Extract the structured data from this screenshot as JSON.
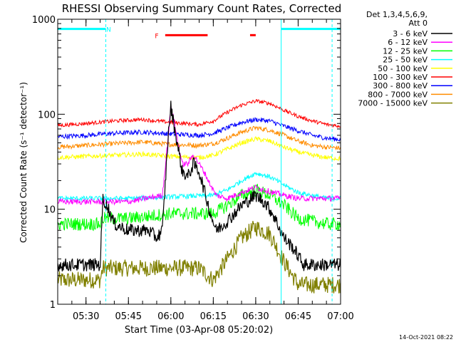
{
  "chart_data": {
    "type": "line",
    "title": "RHESSI Observing Summary Count Rates, Corrected",
    "xlabel": "Start Time (03-Apr-08 05:20:02)",
    "ylabel": "Corrected Count Rate (s⁻¹ detector⁻¹)",
    "y_scale": "log",
    "ylim": [
      1,
      1000
    ],
    "xlim": [
      "05:20",
      "07:00"
    ],
    "y_ticks": [
      {
        "value": 1,
        "label": "1"
      },
      {
        "value": 10,
        "label": "10"
      },
      {
        "value": 100,
        "label": "100"
      },
      {
        "value": 1000,
        "label": "1000"
      }
    ],
    "x_ticks": [
      {
        "time": "05:30",
        "label": "05:30"
      },
      {
        "time": "05:45",
        "label": "05:45"
      },
      {
        "time": "06:00",
        "label": "06:00"
      },
      {
        "time": "06:15",
        "label": "06:15"
      },
      {
        "time": "06:30",
        "label": "06:30"
      },
      {
        "time": "06:45",
        "label": "06:45"
      },
      {
        "time": "07:00",
        "label": "07:00"
      }
    ],
    "legend_position": "right",
    "legend_header": [
      "Det 1,3,4,5,6,9,",
      "Att 0"
    ],
    "series": [
      {
        "name": "3 - 6 keV",
        "color": "#000000",
        "x": [
          "05:20",
          "05:35",
          "05:36",
          "05:38",
          "05:40",
          "05:45",
          "05:52",
          "05:55",
          "05:57",
          "05:59",
          "06:00",
          "06:01",
          "06:02",
          "06:04",
          "06:06",
          "06:08",
          "06:10",
          "06:12",
          "06:14",
          "06:16",
          "06:20",
          "06:25",
          "06:30",
          "06:33",
          "06:36",
          "06:40",
          "06:43",
          "06:47",
          "06:55",
          "07:00"
        ],
        "y": [
          2.6,
          2.6,
          13,
          10,
          7,
          6,
          6,
          5,
          6,
          55,
          120,
          80,
          55,
          25,
          22,
          30,
          25,
          15,
          9,
          6,
          7.5,
          11,
          14,
          12,
          9,
          5,
          4,
          2.6,
          2.6,
          2.6
        ]
      },
      {
        "name": "6 - 12 keV",
        "color": "#ff00ff",
        "x": [
          "05:20",
          "05:45",
          "05:57",
          "05:59",
          "06:00",
          "06:01",
          "06:02",
          "06:04",
          "06:06",
          "06:08",
          "06:10",
          "06:12",
          "06:14",
          "06:16",
          "06:20",
          "06:25",
          "06:30",
          "06:33",
          "06:36",
          "06:40",
          "06:45",
          "06:55",
          "07:00"
        ],
        "y": [
          12,
          12,
          14,
          55,
          120,
          90,
          60,
          30,
          30,
          38,
          30,
          24,
          18,
          14,
          13,
          15,
          17,
          16,
          15,
          14,
          13,
          13,
          13
        ]
      },
      {
        "name": "12 - 25 keV",
        "color": "#00ff00",
        "x": [
          "05:20",
          "05:35",
          "05:36",
          "05:45",
          "06:00",
          "06:15",
          "06:20",
          "06:25",
          "06:30",
          "06:35",
          "06:40",
          "06:45",
          "06:55",
          "07:00"
        ],
        "y": [
          7,
          7,
          8,
          8,
          9,
          9,
          11,
          14,
          16,
          14,
          11,
          8,
          7,
          7
        ]
      },
      {
        "name": "25 - 50 keV",
        "color": "#00ffff",
        "x": [
          "05:20",
          "05:45",
          "06:00",
          "06:15",
          "06:20",
          "06:25",
          "06:30",
          "06:35",
          "06:40",
          "06:45",
          "06:55",
          "07:00"
        ],
        "y": [
          13,
          13,
          13.5,
          14,
          16,
          20,
          24,
          22,
          18,
          15,
          13,
          13
        ]
      },
      {
        "name": "50 - 100 keV",
        "color": "#ffff00",
        "x": [
          "05:20",
          "05:30",
          "05:40",
          "05:50",
          "06:00",
          "06:10",
          "06:15",
          "06:20",
          "06:25",
          "06:30",
          "06:35",
          "06:40",
          "06:45",
          "06:50",
          "06:55",
          "07:00"
        ],
        "y": [
          35,
          36,
          37,
          38,
          36,
          35,
          37,
          43,
          50,
          55,
          52,
          45,
          40,
          37,
          35,
          34
        ]
      },
      {
        "name": "100 - 300 keV",
        "color": "#ff0000",
        "x": [
          "05:20",
          "05:30",
          "05:40",
          "05:50",
          "06:00",
          "06:10",
          "06:15",
          "06:20",
          "06:25",
          "06:30",
          "06:35",
          "06:40",
          "06:45",
          "06:50",
          "06:55",
          "07:00"
        ],
        "y": [
          76,
          80,
          85,
          88,
          82,
          78,
          85,
          105,
          125,
          138,
          130,
          110,
          95,
          85,
          78,
          75
        ]
      },
      {
        "name": "300 - 800 keV",
        "color": "#0000ff",
        "x": [
          "05:20",
          "05:30",
          "05:40",
          "05:50",
          "06:00",
          "06:10",
          "06:15",
          "06:20",
          "06:25",
          "06:30",
          "06:35",
          "06:40",
          "06:45",
          "06:50",
          "06:55",
          "07:00"
        ],
        "y": [
          58,
          60,
          63,
          65,
          62,
          60,
          63,
          72,
          82,
          88,
          85,
          75,
          67,
          60,
          56,
          54
        ]
      },
      {
        "name": "800 - 7000 keV",
        "color": "#ff8c00",
        "x": [
          "05:20",
          "05:30",
          "05:40",
          "05:50",
          "06:00",
          "06:10",
          "06:15",
          "06:20",
          "06:25",
          "06:30",
          "06:35",
          "06:40",
          "06:45",
          "06:50",
          "06:55",
          "07:00"
        ],
        "y": [
          45,
          47,
          49,
          51,
          48,
          47,
          49,
          56,
          65,
          72,
          68,
          60,
          52,
          47,
          45,
          44
        ]
      },
      {
        "name": "7000 - 15000 keV",
        "color": "#808000",
        "x": [
          "05:20",
          "05:35",
          "05:36",
          "05:45",
          "05:57",
          "06:00",
          "06:10",
          "06:15",
          "06:20",
          "06:25",
          "06:30",
          "06:35",
          "06:40",
          "06:45",
          "06:55",
          "07:00"
        ],
        "y": [
          1.8,
          1.8,
          2.4,
          2.4,
          2.4,
          2.4,
          2.4,
          1.8,
          3,
          5,
          6.5,
          5.5,
          2.8,
          1.6,
          1.6,
          1.6
        ]
      }
    ],
    "segments": [
      {
        "kind": "night",
        "color": "#00ffff",
        "y": 790,
        "ranges": [
          [
            "05:20",
            "05:37"
          ],
          [
            "06:39",
            "07:00"
          ]
        ],
        "label": "N",
        "label_time": "05:38"
      },
      {
        "kind": "flare",
        "color": "#ff0000",
        "y": 680,
        "ranges": [
          [
            "05:58",
            "06:13"
          ],
          [
            "06:28",
            "06:30"
          ]
        ],
        "label": "F",
        "label_time": "05:55"
      }
    ],
    "vlines": [
      {
        "time": "05:37",
        "color": "#00ffff",
        "style": "dashed"
      },
      {
        "time": "06:39",
        "color": "#00ffff",
        "style": "solid"
      },
      {
        "time": "06:57",
        "color": "#00ffff",
        "style": "dashed"
      }
    ],
    "footer_date": "14-Oct-2021 08:22"
  }
}
